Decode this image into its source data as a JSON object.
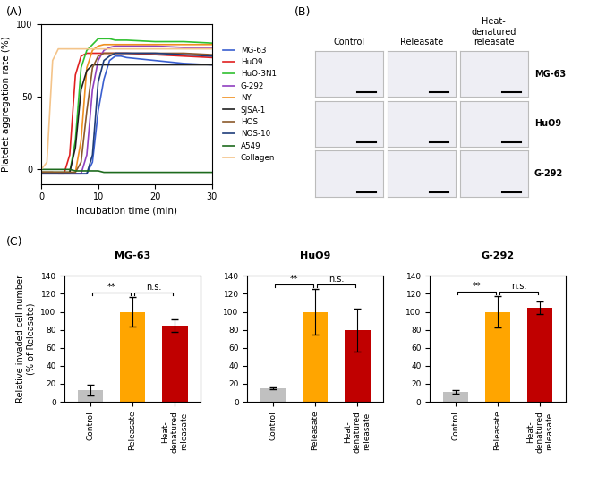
{
  "chart_data": [
    {
      "type": "line",
      "panel": "(A)",
      "x_label": "Incubation time (min)",
      "y_label": "Platelet aggregation rate (%)",
      "x": [
        0,
        1,
        2,
        3,
        4,
        5,
        6,
        7,
        8,
        9,
        10,
        11,
        12,
        13,
        14,
        15,
        20,
        25,
        30
      ],
      "xlim": [
        0,
        30
      ],
      "xticks": [
        0,
        10,
        20,
        30
      ],
      "ylim": [
        -10,
        100
      ],
      "yticks": [
        0,
        50,
        100
      ],
      "legend": "center left",
      "series": [
        {
          "name": "MG-63",
          "color": "#3a5fd0",
          "values": [
            -3,
            -3,
            -3,
            -3,
            -3,
            -3,
            -3,
            -3,
            -3,
            5,
            40,
            62,
            75,
            78,
            78,
            77,
            75,
            73,
            72
          ]
        },
        {
          "name": "HuO9",
          "color": "#e02020",
          "values": [
            -2,
            -2,
            -2,
            -3,
            -3,
            10,
            65,
            78,
            80,
            80,
            80,
            80,
            80,
            80,
            80,
            80,
            79,
            78,
            77
          ]
        },
        {
          "name": "HuO-3N1",
          "color": "#30c030",
          "values": [
            -2,
            -2,
            -2,
            -2,
            -2,
            -2,
            20,
            70,
            82,
            86,
            90,
            90,
            90,
            89,
            89,
            89,
            88,
            88,
            87
          ]
        },
        {
          "name": "G-292",
          "color": "#9040c0",
          "values": [
            -3,
            -3,
            -3,
            -3,
            -3,
            -3,
            -3,
            -3,
            10,
            55,
            75,
            82,
            84,
            85,
            85,
            85,
            85,
            84,
            84
          ]
        },
        {
          "name": "NY",
          "color": "#f09020",
          "values": [
            -2,
            -2,
            -2,
            -2,
            -2,
            -2,
            -2,
            20,
            70,
            82,
            85,
            86,
            86,
            86,
            86,
            86,
            86,
            86,
            86
          ]
        },
        {
          "name": "SJSA-1",
          "color": "#202020",
          "values": [
            -2,
            -2,
            -2,
            -2,
            -2,
            -2,
            15,
            55,
            68,
            72,
            72,
            72,
            72,
            72,
            72,
            72,
            72,
            72,
            72
          ]
        },
        {
          "name": "HOS",
          "color": "#8b5a2b",
          "values": [
            -2,
            -2,
            -2,
            -2,
            -2,
            -2,
            -2,
            5,
            40,
            70,
            78,
            80,
            80,
            80,
            80,
            80,
            80,
            80,
            79
          ]
        },
        {
          "name": "NOS-10",
          "color": "#1f3d7a",
          "values": [
            -3,
            -3,
            -3,
            -3,
            -3,
            -3,
            -3,
            -3,
            -3,
            10,
            60,
            75,
            78,
            80,
            80,
            80,
            80,
            79,
            78
          ]
        },
        {
          "name": "A549",
          "color": "#1e6b1e",
          "values": [
            0,
            0,
            0,
            0,
            0,
            0,
            -1,
            -1,
            -1,
            -1,
            -1,
            -2,
            -2,
            -2,
            -2,
            -2,
            -2,
            -2,
            -2
          ]
        },
        {
          "name": "Collagen",
          "color": "#f4c48a",
          "values": [
            0,
            5,
            75,
            83,
            83,
            83,
            83,
            83,
            83,
            83,
            83,
            83,
            83,
            83,
            83,
            83,
            83,
            83,
            83
          ]
        }
      ]
    },
    {
      "type": "bar",
      "panel": "(C)",
      "title": "MG-63",
      "y_label": "Relative invaded cell number\n(% of Releasate)",
      "categories": [
        "Control",
        "Releasate",
        "Heat-denatured releasate"
      ],
      "values": [
        13,
        100,
        85
      ],
      "errors": [
        6,
        16,
        7
      ],
      "colors": [
        "#c0c0c0",
        "#ffa500",
        "#c00000"
      ],
      "ylim": [
        0,
        140
      ],
      "yticks": [
        0,
        20,
        40,
        60,
        80,
        100,
        120,
        140
      ],
      "annotations": [
        {
          "text": "**",
          "between": [
            "Control",
            "Releasate"
          ]
        },
        {
          "text": "n.s.",
          "between": [
            "Releasate",
            "Heat-denatured releasate"
          ]
        }
      ]
    },
    {
      "type": "bar",
      "title": "HuO9",
      "categories": [
        "Control",
        "Releasate",
        "Heat-denatured releasate"
      ],
      "values": [
        15,
        100,
        80
      ],
      "errors": [
        1,
        25,
        24
      ],
      "colors": [
        "#c0c0c0",
        "#ffa500",
        "#c00000"
      ],
      "ylim": [
        0,
        140
      ],
      "yticks": [
        0,
        20,
        40,
        60,
        80,
        100,
        120,
        140
      ],
      "annotations": [
        {
          "text": "**",
          "between": [
            "Control",
            "Releasate"
          ]
        },
        {
          "text": "n.s.",
          "between": [
            "Releasate",
            "Heat-denatured releasate"
          ]
        }
      ]
    },
    {
      "type": "bar",
      "title": "G-292",
      "categories": [
        "Control",
        "Releasate",
        "Heat-denatured releasate"
      ],
      "values": [
        11,
        100,
        105
      ],
      "errors": [
        2,
        17,
        7
      ],
      "colors": [
        "#c0c0c0",
        "#ffa500",
        "#c00000"
      ],
      "ylim": [
        0,
        140
      ],
      "yticks": [
        0,
        20,
        40,
        60,
        80,
        100,
        120,
        140
      ],
      "annotations": [
        {
          "text": "**",
          "between": [
            "Control",
            "Releasate"
          ]
        },
        {
          "text": "n.s.",
          "between": [
            "Releasate",
            "Heat-denatured releasate"
          ]
        }
      ]
    }
  ],
  "panel_b": {
    "label": "(B)",
    "columns": [
      "Control",
      "Releasate",
      "Heat-denatured releasate"
    ],
    "rows": [
      "MG-63",
      "HuO9",
      "G-292"
    ]
  }
}
